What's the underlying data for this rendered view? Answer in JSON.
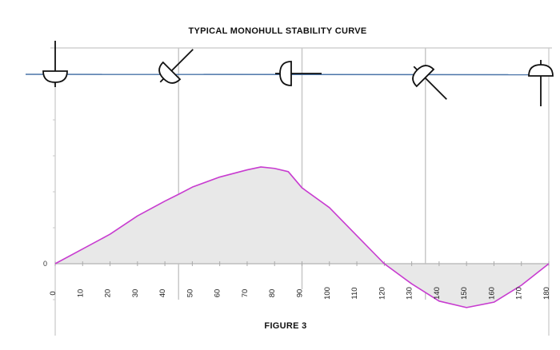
{
  "chart_data": {
    "type": "area",
    "title": "TYPICAL MONOHULL STABILITY CURVE",
    "caption": "FIGURE 3",
    "xlabel": "",
    "ylabel": "",
    "x": [
      0,
      10,
      20,
      30,
      40,
      45,
      50,
      60,
      70,
      75,
      80,
      85,
      90,
      100,
      110,
      120,
      130,
      140,
      150,
      160,
      170,
      180
    ],
    "values": [
      0,
      0.41,
      0.82,
      1.33,
      1.74,
      1.93,
      2.13,
      2.41,
      2.61,
      2.69,
      2.65,
      2.56,
      2.11,
      1.56,
      0.78,
      0,
      -0.56,
      -1.04,
      -1.22,
      -1.07,
      -0.6,
      0
    ],
    "xlim": [
      0,
      180
    ],
    "ylim": [
      -2,
      6
    ],
    "xticks": [
      "0",
      "10",
      "20",
      "30",
      "40",
      "50",
      "60",
      "70",
      "80",
      "90",
      "100",
      "110",
      "120",
      "130",
      "140",
      "150",
      "160",
      "170",
      "180"
    ],
    "yticks": [
      "0"
    ],
    "vertical_gridlines_at": [
      45,
      90,
      135
    ],
    "heel_icons_at": [
      0,
      45,
      90,
      135,
      180
    ],
    "colors": {
      "curve": "#c83cd0",
      "fill": "#e8e8e8",
      "waterline": "#4a74a8",
      "grid": "#c8c8c8",
      "icon": "#111111"
    },
    "legend": "none",
    "grid": false
  }
}
